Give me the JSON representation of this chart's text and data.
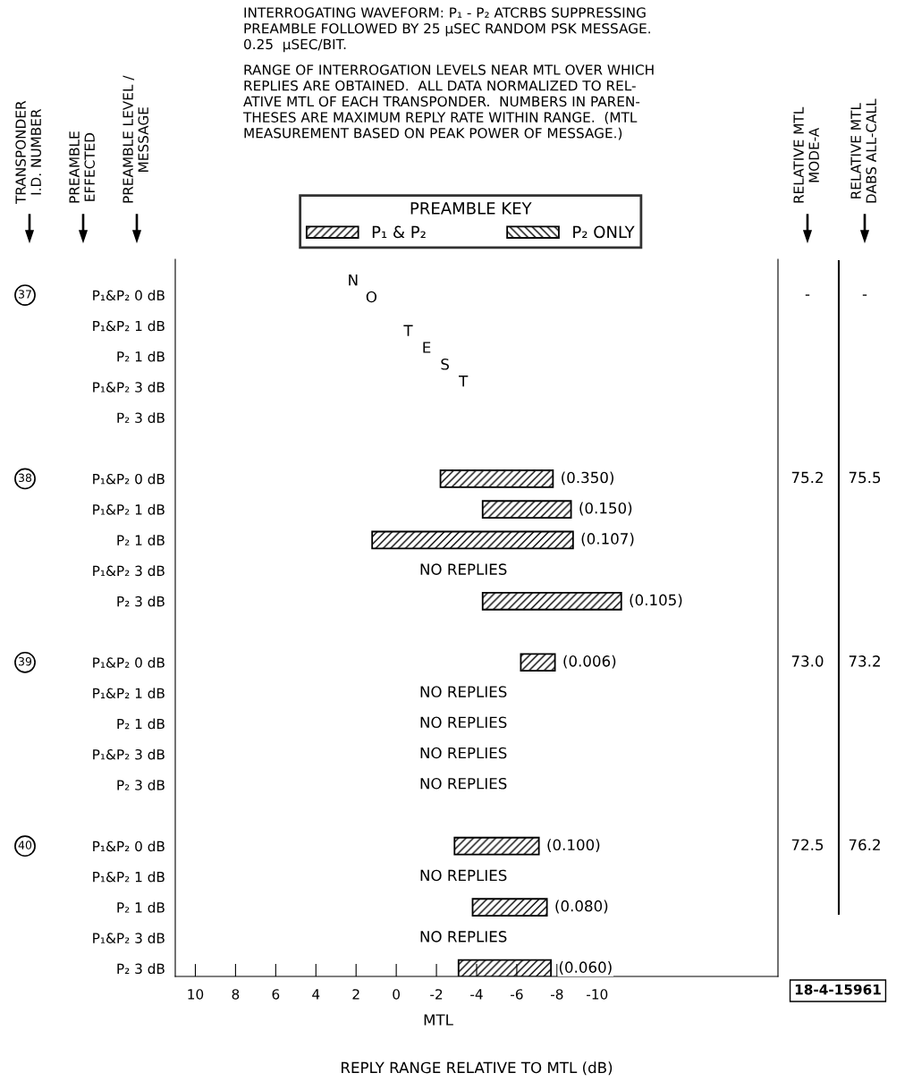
{
  "chart_data": {
    "type": "bar",
    "orientation": "horizontal",
    "annotations": [
      "INTERROGATING WAVEFORM: P₁ - P₂ ATCRBS SUPPRESSING\nPREAMBLE FOLLOWED BY 25 μSEC RANDOM PSK MESSAGE.\n0.25  μSEC/BIT.",
      "RANGE OF INTERROGATION LEVELS NEAR MTL OVER WHICH\nREPLIES ARE OBTAINED.  ALL DATA NORMALIZED TO REL-\nATIVE MTL OF EACH TRANSPONDER.  NUMBERS IN PAREN-\nTHESES ARE MAXIMUM REPLY RATE WITHIN RANGE.  (MTL\nMEASUREMENT BASED ON PEAK POWER OF MESSAGE.)",
      "TRANSPONDER\nI.D. NUMBER",
      "PREAMBLE\nEFFECTED",
      "PREAMBLE LEVEL /\nMESSAGE",
      "RELATIVE MTL\nMODE-A",
      "RELATIVE MTL\nDABS ALL-CALL",
      "37",
      "38",
      "39",
      "40",
      "-",
      "75.2",
      "73.0",
      "72.5",
      "-",
      "75.5",
      "73.2",
      "76.2",
      "NO TEST",
      "18-4-15961",
      "MTL",
      "(0.350)",
      "(0.150)",
      "(0.107)",
      "(0.105)",
      "(0.006)",
      "(0.100)",
      "(0.080)",
      "(0.060)"
    ],
    "xlabel": "REPLY RANGE RELATIVE TO MTL (dB)",
    "legend_title": "PREAMBLE KEY",
    "legend": "top",
    "categories": [
      "P₁&P₂ 0 dB",
      "P₁&P₂ 1 dB",
      "P₂ 1 dB",
      "P₁&P₂ 3 dB",
      "P₂ 3 dB",
      null,
      "P₁&P₂ 0 dB",
      "P₁&P₂ 1 dB",
      "P₂ 1 dB",
      "P₁&P₂ 3 dB",
      "P₂ 3 dB",
      null,
      "P₁&P₂ 0 dB",
      "P₁&P₂ 1 dB",
      "P₂ 1 dB",
      "P₁&P₂ 3 dB",
      "P₂ 3 dB",
      null,
      "P₁&P₂ 0 dB",
      "P₁&P₂ 1 dB",
      "P₂ 1 dB",
      "P₁&P₂ 3 dB",
      "P₂ 3 dB"
    ],
    "series": [
      {
        "name": "P₁ & P₂",
        "color": "#000000",
        "base": [
          null,
          null,
          null,
          null,
          null,
          null,
          -2.2,
          -4.3,
          1.2,
          null,
          -4.3,
          null,
          -6.2,
          null,
          null,
          null,
          null,
          null,
          -2.9,
          null,
          -3.8,
          null,
          -3.1
        ],
        "values": [
          null,
          null,
          null,
          null,
          null,
          null,
          -5.6,
          -4.4,
          -10.0,
          null,
          -6.9,
          null,
          -1.7,
          null,
          null,
          null,
          null,
          null,
          -4.2,
          null,
          -3.7,
          null,
          -4.6
        ],
        "value_labels": [
          null,
          null,
          null,
          null,
          null,
          null,
          null,
          null,
          null,
          "NO REPLIES",
          null,
          null,
          null,
          "NO REPLIES",
          "NO REPLIES",
          "NO REPLIES",
          "NO REPLIES",
          null,
          null,
          "NO REPLIES",
          null,
          "NO REPLIES",
          null
        ]
      },
      {
        "name": "P₂ ONLY",
        "color": "#000000",
        "values": [
          null,
          null,
          null,
          null,
          null,
          null,
          null,
          null,
          null,
          null,
          null,
          null,
          null,
          null,
          null,
          null,
          null,
          null,
          null,
          null,
          null,
          null,
          null
        ]
      }
    ],
    "xlim": [
      11,
      -19
    ],
    "xticks": [
      10,
      8,
      6,
      4,
      2,
      0,
      -2,
      -4,
      -6,
      -8,
      -10
    ],
    "grid": false
  }
}
